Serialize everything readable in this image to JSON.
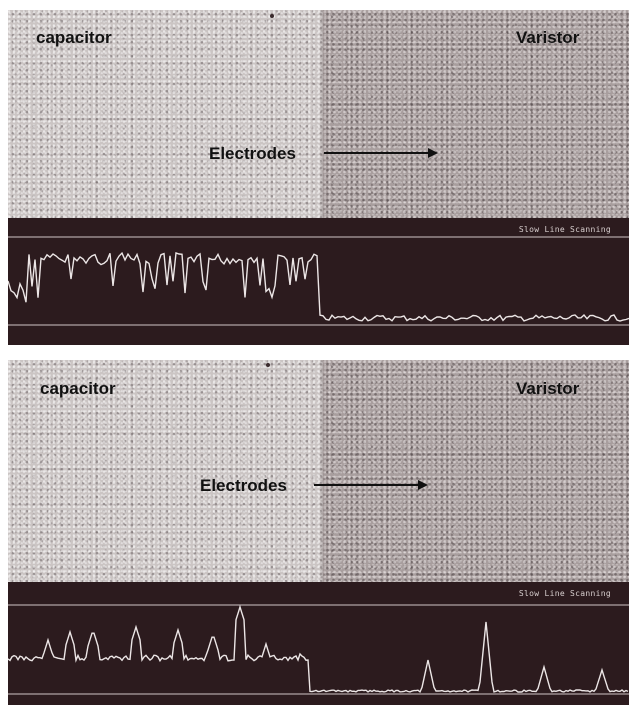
{
  "figure": {
    "panels": [
      {
        "labels": {
          "left_region": "capacitor",
          "right_region": "Varistor",
          "arrow_label": "Electrodes"
        },
        "scope_caption": "Slow Line Scanning"
      },
      {
        "labels": {
          "left_region": "capacitor",
          "right_region": "Varistor",
          "arrow_label": "Electrodes"
        },
        "scope_caption": "Slow Line Scanning"
      }
    ]
  },
  "colors": {
    "trace": "#ece6e6",
    "scope_background": "#2c1b1e",
    "label_text": "#111111"
  },
  "icons": [
    "arrow-right-icon"
  ]
}
